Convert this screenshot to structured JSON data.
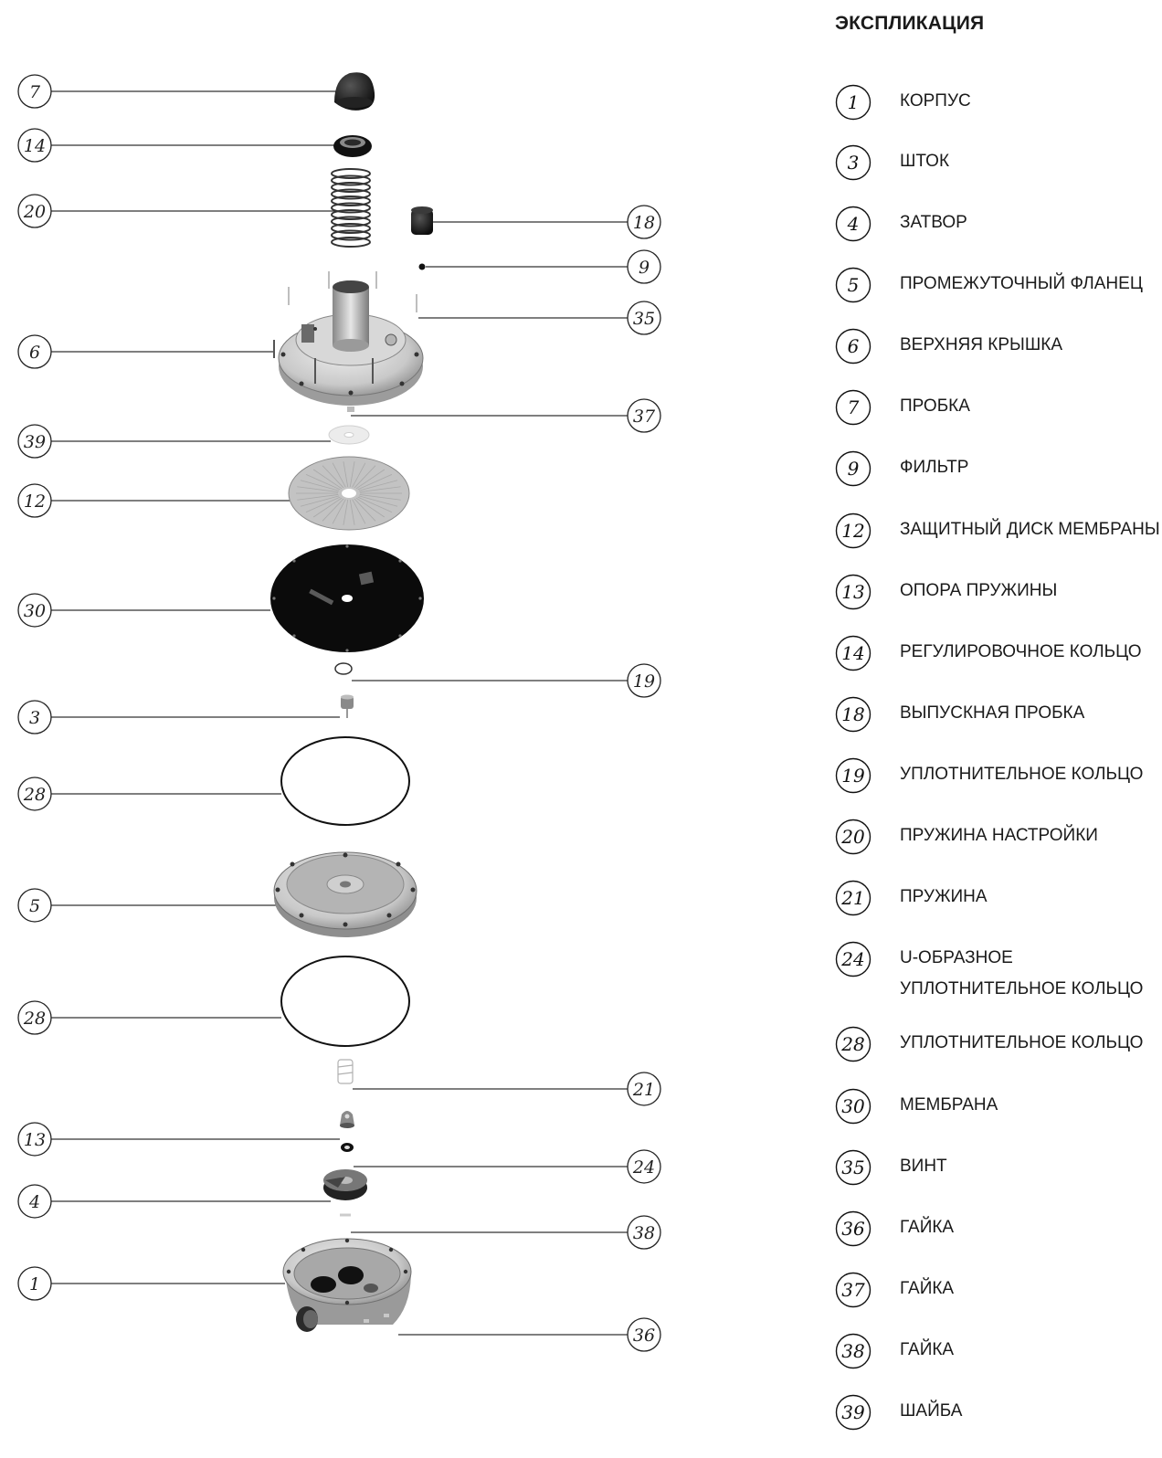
{
  "legend": {
    "title": "ЭКСПЛИКАЦИЯ",
    "items": [
      {
        "num": "1",
        "label": "КОРПУС"
      },
      {
        "num": "3",
        "label": "ШТОК"
      },
      {
        "num": "4",
        "label": "ЗАТВОР"
      },
      {
        "num": "5",
        "label": "ПРОМЕЖУТОЧНЫЙ ФЛАНЕЦ"
      },
      {
        "num": "6",
        "label": "ВЕРХНЯЯ КРЫШКА"
      },
      {
        "num": "7",
        "label": "ПРОБКА"
      },
      {
        "num": "9",
        "label": "ФИЛЬТР"
      },
      {
        "num": "12",
        "label": "ЗАЩИТНЫЙ ДИСК МЕМБРАНЫ"
      },
      {
        "num": "13",
        "label": "ОПОРА ПРУЖИНЫ"
      },
      {
        "num": "14",
        "label": "РЕГУЛИРОВОЧНОЕ КОЛЬЦО"
      },
      {
        "num": "18",
        "label": "ВЫПУСКНАЯ ПРОБКА"
      },
      {
        "num": "19",
        "label": "УПЛОТНИТЕЛЬНОЕ КОЛЬЦО"
      },
      {
        "num": "20",
        "label": "ПРУЖИНА НАСТРОЙКИ"
      },
      {
        "num": "21",
        "label": "ПРУЖИНА"
      },
      {
        "num": "24",
        "label": "U-ОБРАЗНОЕ",
        "label2": "УПЛОТНИТЕЛЬНОЕ КОЛЬЦО"
      },
      {
        "num": "28",
        "label": "УПЛОТНИТЕЛЬНОЕ КОЛЬЦО"
      },
      {
        "num": "30",
        "label": "МЕМБРАНА"
      },
      {
        "num": "35",
        "label": "ВИНТ"
      },
      {
        "num": "36",
        "label": "ГАЙКА"
      },
      {
        "num": "37",
        "label": "ГАЙКА"
      },
      {
        "num": "38",
        "label": "ГАЙКА"
      },
      {
        "num": "39",
        "label": "ШАЙБА"
      }
    ]
  },
  "callouts": [
    {
      "num": "7",
      "side": "left"
    },
    {
      "num": "14",
      "side": "left"
    },
    {
      "num": "20",
      "side": "left"
    },
    {
      "num": "18",
      "side": "right"
    },
    {
      "num": "9",
      "side": "right"
    },
    {
      "num": "35",
      "side": "right"
    },
    {
      "num": "6",
      "side": "left"
    },
    {
      "num": "37",
      "side": "right"
    },
    {
      "num": "39",
      "side": "left"
    },
    {
      "num": "12",
      "side": "left"
    },
    {
      "num": "30",
      "side": "left"
    },
    {
      "num": "19",
      "side": "right"
    },
    {
      "num": "3",
      "side": "left"
    },
    {
      "num": "28",
      "side": "left"
    },
    {
      "num": "5",
      "side": "left"
    },
    {
      "num": "28",
      "side": "left"
    },
    {
      "num": "21",
      "side": "right"
    },
    {
      "num": "13",
      "side": "left"
    },
    {
      "num": "24",
      "side": "right"
    },
    {
      "num": "4",
      "side": "left"
    },
    {
      "num": "38",
      "side": "right"
    },
    {
      "num": "1",
      "side": "left"
    },
    {
      "num": "36",
      "side": "right"
    }
  ]
}
